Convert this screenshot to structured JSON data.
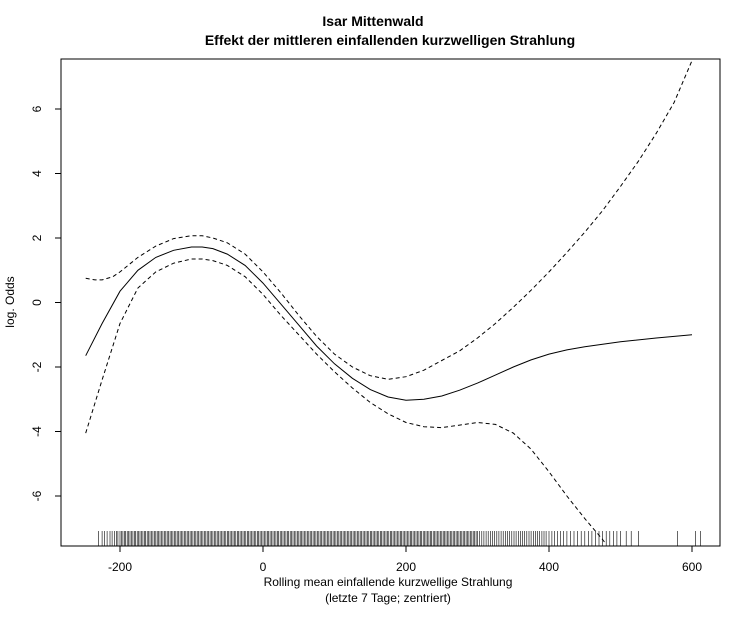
{
  "chart_data": {
    "type": "line",
    "title": "Isar Mittenwald",
    "subtitle": "Effekt der mittleren einfallenden kurzwelligen Strahlung",
    "xlabel": "Rolling mean einfallende kurzwellige Strahlung",
    "xlabel2": "(letzte 7 Tage; zentriert)",
    "ylabel": "log. Odds",
    "xlim": [
      -260,
      625
    ],
    "ylim": [
      -7.5,
      7.5
    ],
    "x_ticks": [
      -200,
      0,
      200,
      400,
      600
    ],
    "x_tick_labels": [
      "-200",
      "0",
      "200",
      "400",
      "600"
    ],
    "y_ticks": [
      -6,
      -4,
      -2,
      0,
      2,
      4,
      6
    ],
    "y_tick_labels": [
      "-6",
      "-4",
      "-2",
      "0",
      "2",
      "4",
      "6"
    ],
    "grid": false,
    "series": [
      {
        "name": "estimate",
        "style": "solid",
        "x": [
          -248,
          -225,
          -200,
          -175,
          -150,
          -125,
          -100,
          -85,
          -70,
          -50,
          -25,
          0,
          25,
          50,
          75,
          100,
          125,
          150,
          175,
          200,
          225,
          250,
          275,
          300,
          325,
          350,
          375,
          400,
          425,
          450,
          500,
          550,
          600
        ],
        "y": [
          -1.65,
          -0.65,
          0.35,
          1.0,
          1.4,
          1.62,
          1.72,
          1.72,
          1.67,
          1.5,
          1.15,
          0.6,
          -0.05,
          -0.7,
          -1.35,
          -1.9,
          -2.35,
          -2.7,
          -2.93,
          -3.03,
          -3.0,
          -2.9,
          -2.72,
          -2.5,
          -2.25,
          -2.0,
          -1.78,
          -1.6,
          -1.47,
          -1.37,
          -1.22,
          -1.1,
          -1.0
        ]
      },
      {
        "name": "upper",
        "style": "dashed",
        "x": [
          -248,
          -235,
          -225,
          -210,
          -200,
          -175,
          -150,
          -125,
          -100,
          -85,
          -70,
          -50,
          -25,
          0,
          25,
          50,
          75,
          100,
          125,
          150,
          175,
          200,
          225,
          250,
          275,
          300,
          325,
          350,
          375,
          400,
          425,
          450,
          475,
          500,
          525,
          550,
          575,
          600
        ],
        "y": [
          0.75,
          0.7,
          0.7,
          0.8,
          0.95,
          1.4,
          1.75,
          1.98,
          2.07,
          2.07,
          2.0,
          1.85,
          1.5,
          0.95,
          0.3,
          -0.4,
          -1.05,
          -1.6,
          -2.0,
          -2.27,
          -2.38,
          -2.3,
          -2.1,
          -1.8,
          -1.5,
          -1.1,
          -0.65,
          -0.15,
          0.38,
          0.95,
          1.55,
          2.18,
          2.85,
          3.6,
          4.38,
          5.25,
          6.2,
          7.5
        ]
      },
      {
        "name": "lower",
        "style": "dashed",
        "x": [
          -248,
          -225,
          -200,
          -175,
          -150,
          -125,
          -100,
          -85,
          -70,
          -50,
          -25,
          0,
          25,
          50,
          75,
          100,
          125,
          150,
          175,
          200,
          225,
          250,
          275,
          300,
          325,
          350,
          375,
          400,
          425,
          450,
          475,
          480
        ],
        "y": [
          -4.05,
          -2.4,
          -0.65,
          0.45,
          0.95,
          1.22,
          1.35,
          1.35,
          1.3,
          1.15,
          0.8,
          0.25,
          -0.4,
          -1.0,
          -1.6,
          -2.15,
          -2.65,
          -3.1,
          -3.45,
          -3.72,
          -3.85,
          -3.88,
          -3.8,
          -3.72,
          -3.78,
          -4.05,
          -4.55,
          -5.25,
          -6.0,
          -6.7,
          -7.35,
          -7.5
        ]
      }
    ],
    "rug_x": [
      -230,
      -225,
      -222,
      -218,
      -214,
      -211,
      -208,
      -205,
      -203,
      -200,
      -198,
      -196,
      -194,
      -192,
      -190,
      -188,
      -186,
      -184,
      -182,
      -180,
      -178,
      -176,
      -174,
      -172,
      -170,
      -168,
      -166,
      -164,
      -162,
      -160,
      -158,
      -156,
      -154,
      -152,
      -150,
      -148,
      -146,
      -144,
      -142,
      -140,
      -138,
      -136,
      -134,
      -132,
      -130,
      -128,
      -126,
      -124,
      -122,
      -120,
      -118,
      -116,
      -114,
      -112,
      -110,
      -108,
      -106,
      -104,
      -102,
      -100,
      -98,
      -96,
      -94,
      -92,
      -90,
      -88,
      -86,
      -84,
      -82,
      -80,
      -78,
      -76,
      -74,
      -72,
      -70,
      -68,
      -66,
      -64,
      -62,
      -60,
      -58,
      -56,
      -54,
      -52,
      -50,
      -48,
      -46,
      -44,
      -42,
      -40,
      -38,
      -36,
      -34,
      -32,
      -30,
      -28,
      -26,
      -24,
      -22,
      -20,
      -18,
      -16,
      -14,
      -12,
      -10,
      -8,
      -6,
      -4,
      -2,
      0,
      2,
      4,
      6,
      8,
      10,
      12,
      14,
      16,
      18,
      20,
      22,
      24,
      26,
      28,
      30,
      32,
      34,
      36,
      38,
      40,
      42,
      44,
      46,
      48,
      50,
      52,
      54,
      56,
      58,
      60,
      62,
      64,
      66,
      68,
      70,
      72,
      74,
      76,
      78,
      80,
      82,
      84,
      86,
      88,
      90,
      92,
      94,
      96,
      98,
      100,
      102,
      104,
      106,
      108,
      110,
      112,
      114,
      116,
      118,
      120,
      122,
      124,
      126,
      128,
      130,
      132,
      134,
      136,
      138,
      140,
      142,
      144,
      146,
      148,
      150,
      152,
      154,
      156,
      158,
      160,
      162,
      164,
      166,
      168,
      170,
      172,
      174,
      176,
      178,
      180,
      182,
      184,
      186,
      188,
      190,
      192,
      194,
      196,
      198,
      200,
      202,
      204,
      206,
      208,
      210,
      212,
      214,
      216,
      218,
      220,
      222,
      224,
      226,
      228,
      230,
      232,
      234,
      236,
      238,
      240,
      242,
      244,
      246,
      248,
      250,
      252,
      254,
      256,
      258,
      260,
      262,
      264,
      266,
      268,
      270,
      272,
      274,
      276,
      278,
      280,
      282,
      284,
      286,
      288,
      290,
      292,
      294,
      296,
      298,
      300,
      303,
      306,
      309,
      312,
      315,
      318,
      321,
      324,
      327,
      330,
      333,
      336,
      339,
      342,
      345,
      348,
      351,
      354,
      357,
      360,
      363,
      366,
      369,
      372,
      375,
      378,
      381,
      384,
      387,
      390,
      393,
      396,
      400,
      404,
      408,
      412,
      416,
      420,
      425,
      430,
      435,
      440,
      445,
      450,
      455,
      460,
      465,
      470,
      475,
      480,
      485,
      490,
      495,
      500,
      508,
      515,
      525,
      580,
      605,
      612
    ]
  }
}
